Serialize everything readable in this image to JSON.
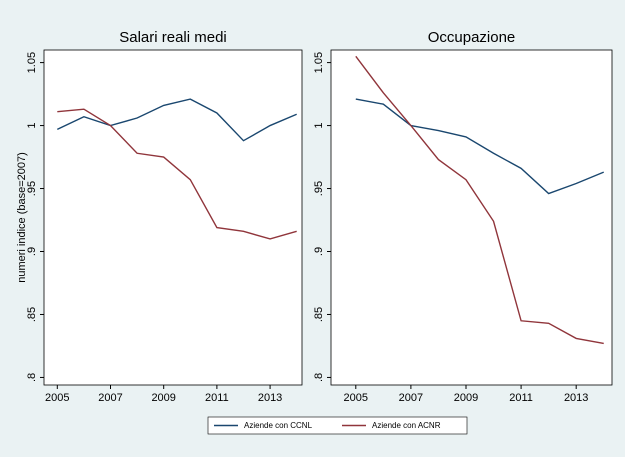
{
  "chart_data": [
    {
      "type": "line",
      "title": "Salari reali medi",
      "ylabel": "numeri indice (base=2007)",
      "x": [
        2005,
        2006,
        2007,
        2008,
        2009,
        2010,
        2011,
        2012,
        2013,
        2014
      ],
      "series": [
        {
          "name": "Aziende con CCNL",
          "color": "#1a476f",
          "values": [
            0.997,
            1.007,
            1.0,
            1.006,
            1.016,
            1.021,
            1.01,
            0.988,
            1.0,
            1.009
          ]
        },
        {
          "name": "Aziende con ACNR",
          "color": "#90353b",
          "values": [
            1.011,
            1.013,
            1.0,
            0.978,
            0.975,
            0.957,
            0.919,
            0.916,
            0.91,
            0.916
          ]
        }
      ],
      "xlim": [
        2004.5,
        2014.2
      ],
      "xticks": [
        2005,
        2007,
        2009,
        2011,
        2013
      ],
      "ylim": [
        0.794,
        1.06
      ],
      "yticks": [
        {
          "value": 0.8,
          "label": ".8"
        },
        {
          "value": 0.85,
          "label": ".85"
        },
        {
          "value": 0.9,
          "label": ".9"
        },
        {
          "value": 0.95,
          "label": ".95"
        },
        1,
        1.05
      ],
      "legend": "bottom"
    },
    {
      "type": "line",
      "title": "Occupazione",
      "x": [
        2005,
        2006,
        2007,
        2008,
        2009,
        2010,
        2011,
        2012,
        2013,
        2014
      ],
      "series": [
        {
          "color": "#1a476f",
          "values": [
            1.021,
            1.017,
            1.0,
            0.996,
            0.991,
            0.978,
            0.966,
            0.946,
            0.954,
            0.963
          ]
        },
        {
          "color": "#90353b",
          "values": [
            1.055,
            1.026,
            1.0,
            0.973,
            0.957,
            0.924,
            0.845,
            0.843,
            0.831,
            0.827
          ]
        }
      ],
      "xlim": [
        2004.1,
        2014.3
      ],
      "xticks": [
        2005,
        2007,
        2009,
        2011,
        2013
      ],
      "ylim": [
        0.794,
        1.06
      ],
      "yticks": [
        {
          "value": 0.8,
          "label": ".8"
        },
        {
          "value": 0.85,
          "label": ".85"
        },
        {
          "value": 0.9,
          "label": ".9"
        },
        {
          "value": 0.95,
          "label": ".95"
        },
        1,
        1.05
      ]
    }
  ]
}
